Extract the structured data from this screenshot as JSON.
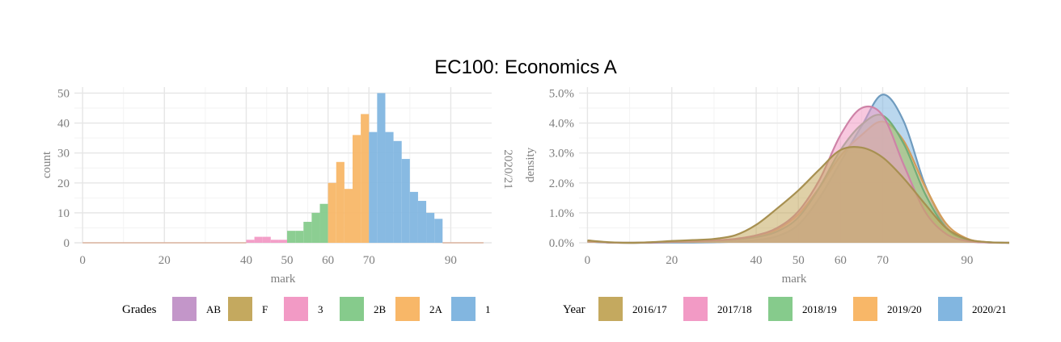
{
  "title": "EC100: Economics A",
  "chart_data": [
    {
      "type": "bar",
      "subtype": "histogram",
      "xlabel": "mark",
      "ylabel": "count",
      "strip_label": "2020/21",
      "xlim": [
        -2,
        100
      ],
      "ylim": [
        0,
        52
      ],
      "x_ticks": [
        0,
        20,
        40,
        50,
        60,
        70,
        90
      ],
      "x_tick_labels": [
        "0",
        "20",
        "40",
        "50",
        "60",
        "70",
        "90"
      ],
      "y_ticks": [
        0,
        10,
        20,
        30,
        40,
        50
      ],
      "y_tick_labels": [
        "0",
        "10",
        "20",
        "30",
        "40",
        "50"
      ],
      "bin_width": 2,
      "legend_title": "Grades",
      "legend_position": "bottom",
      "legend": [
        {
          "label": "AB",
          "color": "#c396c9"
        },
        {
          "label": "F",
          "color": "#c4a95f"
        },
        {
          "label": "3",
          "color": "#f29ac5"
        },
        {
          "label": "2B",
          "color": "#86cb8c"
        },
        {
          "label": "2A",
          "color": "#f8b768"
        },
        {
          "label": "1",
          "color": "#82b6e0"
        }
      ],
      "bins": [
        {
          "start": 0,
          "end": 40,
          "count": 0,
          "grade": "F"
        },
        {
          "start": 40,
          "end": 42,
          "count": 1,
          "grade": "3"
        },
        {
          "start": 42,
          "end": 44,
          "count": 2,
          "grade": "3"
        },
        {
          "start": 44,
          "end": 46,
          "count": 2,
          "grade": "3"
        },
        {
          "start": 46,
          "end": 48,
          "count": 1,
          "grade": "3"
        },
        {
          "start": 48,
          "end": 50,
          "count": 1,
          "grade": "3"
        },
        {
          "start": 50,
          "end": 52,
          "count": 4,
          "grade": "2B"
        },
        {
          "start": 52,
          "end": 54,
          "count": 4,
          "grade": "2B"
        },
        {
          "start": 54,
          "end": 56,
          "count": 7,
          "grade": "2B"
        },
        {
          "start": 56,
          "end": 58,
          "count": 10,
          "grade": "2B"
        },
        {
          "start": 58,
          "end": 60,
          "count": 13,
          "grade": "2B"
        },
        {
          "start": 60,
          "end": 62,
          "count": 20,
          "grade": "2A"
        },
        {
          "start": 62,
          "end": 64,
          "count": 27,
          "grade": "2A"
        },
        {
          "start": 64,
          "end": 66,
          "count": 18,
          "grade": "2A"
        },
        {
          "start": 66,
          "end": 68,
          "count": 36,
          "grade": "2A"
        },
        {
          "start": 68,
          "end": 70,
          "count": 43,
          "grade": "2A"
        },
        {
          "start": 70,
          "end": 72,
          "count": 37,
          "grade": "1"
        },
        {
          "start": 72,
          "end": 74,
          "count": 50,
          "grade": "1"
        },
        {
          "start": 74,
          "end": 76,
          "count": 37,
          "grade": "1"
        },
        {
          "start": 76,
          "end": 78,
          "count": 34,
          "grade": "1"
        },
        {
          "start": 78,
          "end": 80,
          "count": 28,
          "grade": "1"
        },
        {
          "start": 80,
          "end": 82,
          "count": 17,
          "grade": "1"
        },
        {
          "start": 82,
          "end": 84,
          "count": 14,
          "grade": "1"
        },
        {
          "start": 84,
          "end": 86,
          "count": 10,
          "grade": "1"
        },
        {
          "start": 86,
          "end": 88,
          "count": 8,
          "grade": "1"
        },
        {
          "start": 88,
          "end": 98,
          "count": 0,
          "grade": "1"
        }
      ]
    },
    {
      "type": "area",
      "subtype": "density",
      "xlabel": "mark",
      "ylabel": "density",
      "xlim": [
        -2,
        100
      ],
      "ylim": [
        0,
        0.052
      ],
      "x_ticks": [
        0,
        20,
        40,
        50,
        60,
        70,
        90
      ],
      "x_tick_labels": [
        "0",
        "20",
        "40",
        "50",
        "60",
        "70",
        "90"
      ],
      "y_ticks": [
        0,
        0.01,
        0.02,
        0.03,
        0.04,
        0.05
      ],
      "y_tick_labels": [
        "0.0%",
        "1.0%",
        "2.0%",
        "3.0%",
        "4.0%",
        "5.0%"
      ],
      "legend_title": "Year",
      "legend_position": "bottom",
      "x": [
        0,
        5,
        10,
        15,
        20,
        25,
        30,
        35,
        40,
        45,
        50,
        55,
        60,
        65,
        70,
        75,
        80,
        85,
        90,
        95,
        100
      ],
      "series": [
        {
          "name": "2016/17",
          "color": "#c4a95f",
          "values": [
            0.0008,
            0.0002,
            0.0,
            0.0002,
            0.0006,
            0.0009,
            0.0013,
            0.0025,
            0.006,
            0.0115,
            0.0175,
            0.0245,
            0.031,
            0.0318,
            0.0285,
            0.0215,
            0.013,
            0.005,
            0.0012,
            0.0002,
            0.0
          ]
        },
        {
          "name": "2017/18",
          "color": "#f29ac5",
          "values": [
            0.0005,
            0.0001,
            0.0,
            0.0001,
            0.0003,
            0.0005,
            0.0008,
            0.0013,
            0.0025,
            0.005,
            0.0105,
            0.021,
            0.036,
            0.045,
            0.0425,
            0.026,
            0.0105,
            0.003,
            0.0006,
            0.0001,
            0.0
          ]
        },
        {
          "name": "2018/19",
          "color": "#86cb8c",
          "values": [
            0.0006,
            0.0001,
            0.0,
            0.0001,
            0.0003,
            0.0005,
            0.0007,
            0.0011,
            0.0019,
            0.0038,
            0.0085,
            0.0185,
            0.031,
            0.0395,
            0.0425,
            0.033,
            0.0165,
            0.005,
            0.001,
            0.0002,
            0.0
          ]
        },
        {
          "name": "2019/20",
          "color": "#f8b768",
          "values": [
            0.0006,
            0.0001,
            0.0,
            0.0001,
            0.0003,
            0.0005,
            0.0008,
            0.0012,
            0.0022,
            0.0045,
            0.0095,
            0.0185,
            0.029,
            0.036,
            0.0405,
            0.034,
            0.019,
            0.0065,
            0.0014,
            0.0002,
            0.0
          ]
        },
        {
          "name": "2020/21",
          "color": "#82b6e0",
          "values": [
            0.0004,
            0.0001,
            0.0,
            0.0,
            0.0001,
            0.0001,
            0.0002,
            0.0004,
            0.0009,
            0.0022,
            0.006,
            0.015,
            0.027,
            0.039,
            0.0495,
            0.0405,
            0.0195,
            0.0055,
            0.001,
            0.0001,
            0.0
          ]
        }
      ]
    }
  ]
}
